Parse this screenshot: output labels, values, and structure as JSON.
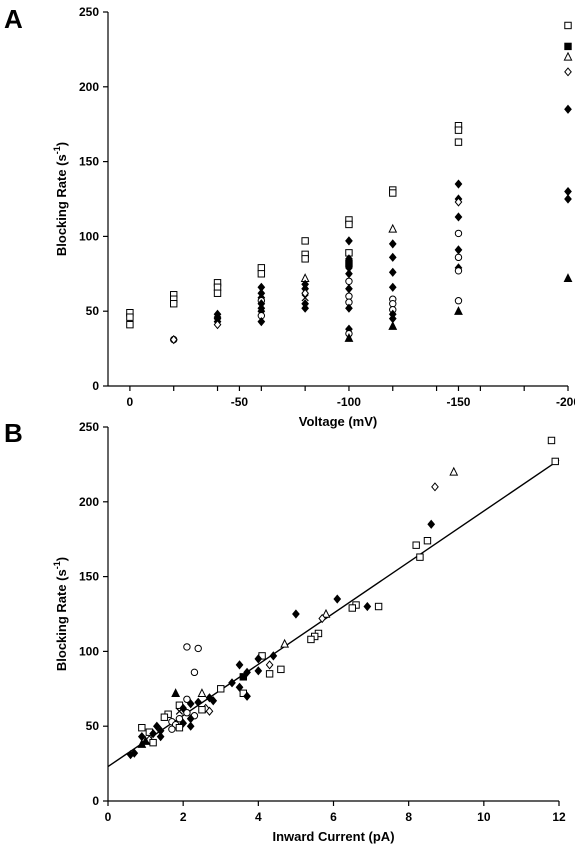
{
  "chart_data": [
    {
      "panel": "A",
      "type": "scatter",
      "xlabel": "Voltage (mV)",
      "ylabel": "Blocking Rate (s",
      "ylabel_sup": "-1",
      "ylabel_end": ")",
      "xlim": [
        10,
        -200
      ],
      "ylim": [
        0,
        250
      ],
      "x_ticks": [
        0,
        -50,
        -100,
        -150,
        -200
      ],
      "y_ticks": [
        0,
        50,
        100,
        150,
        200,
        250
      ],
      "x_minor_ticks": [
        -20,
        -40,
        -60,
        -80,
        -120,
        -140,
        -160,
        -180
      ],
      "points": [
        {
          "x": 0,
          "y": 49,
          "m": "square"
        },
        {
          "x": 0,
          "y": 46,
          "m": "square"
        },
        {
          "x": 0,
          "y": 41,
          "m": "square"
        },
        {
          "x": -20,
          "y": 61,
          "m": "square"
        },
        {
          "x": -20,
          "y": 58,
          "m": "square"
        },
        {
          "x": -20,
          "y": 55,
          "m": "square"
        },
        {
          "x": -20,
          "y": 31,
          "m": "circle"
        },
        {
          "x": -20,
          "y": 31,
          "m": "diamond"
        },
        {
          "x": -40,
          "y": 69,
          "m": "square"
        },
        {
          "x": -40,
          "y": 66,
          "m": "square"
        },
        {
          "x": -40,
          "y": 62,
          "m": "square"
        },
        {
          "x": -40,
          "y": 48,
          "m": "diamond_f"
        },
        {
          "x": -40,
          "y": 46,
          "m": "diamond_f"
        },
        {
          "x": -40,
          "y": 45,
          "m": "diamond_f"
        },
        {
          "x": -40,
          "y": 43,
          "m": "diamond_f"
        },
        {
          "x": -40,
          "y": 41,
          "m": "diamond"
        },
        {
          "x": -60,
          "y": 79,
          "m": "square"
        },
        {
          "x": -60,
          "y": 75,
          "m": "square"
        },
        {
          "x": -60,
          "y": 66,
          "m": "diamond_f"
        },
        {
          "x": -60,
          "y": 62,
          "m": "diamond_f"
        },
        {
          "x": -60,
          "y": 59,
          "m": "diamond_f"
        },
        {
          "x": -60,
          "y": 57,
          "m": "circle"
        },
        {
          "x": -60,
          "y": 55,
          "m": "diamond_f"
        },
        {
          "x": -60,
          "y": 52,
          "m": "diamond_f"
        },
        {
          "x": -60,
          "y": 50,
          "m": "diamond_f"
        },
        {
          "x": -60,
          "y": 47,
          "m": "circle"
        },
        {
          "x": -60,
          "y": 43,
          "m": "diamond_f"
        },
        {
          "x": -80,
          "y": 97,
          "m": "square"
        },
        {
          "x": -80,
          "y": 88,
          "m": "square"
        },
        {
          "x": -80,
          "y": 85,
          "m": "square"
        },
        {
          "x": -80,
          "y": 72,
          "m": "triangle"
        },
        {
          "x": -80,
          "y": 68,
          "m": "diamond_f"
        },
        {
          "x": -80,
          "y": 65,
          "m": "diamond_f"
        },
        {
          "x": -80,
          "y": 62,
          "m": "diamond"
        },
        {
          "x": -80,
          "y": 59,
          "m": "cross"
        },
        {
          "x": -80,
          "y": 55,
          "m": "diamond_f"
        },
        {
          "x": -80,
          "y": 52,
          "m": "diamond_f"
        },
        {
          "x": -100,
          "y": 111,
          "m": "square"
        },
        {
          "x": -100,
          "y": 108,
          "m": "square"
        },
        {
          "x": -100,
          "y": 97,
          "m": "diamond_f"
        },
        {
          "x": -100,
          "y": 89,
          "m": "square"
        },
        {
          "x": -100,
          "y": 85,
          "m": "diamond_f"
        },
        {
          "x": -100,
          "y": 82,
          "m": "square_f"
        },
        {
          "x": -100,
          "y": 79,
          "m": "diamond_f"
        },
        {
          "x": -100,
          "y": 75,
          "m": "diamond_f"
        },
        {
          "x": -100,
          "y": 70,
          "m": "circle"
        },
        {
          "x": -100,
          "y": 65,
          "m": "diamond_f"
        },
        {
          "x": -100,
          "y": 60,
          "m": "circle"
        },
        {
          "x": -100,
          "y": 56,
          "m": "circle"
        },
        {
          "x": -100,
          "y": 52,
          "m": "diamond_f"
        },
        {
          "x": -100,
          "y": 38,
          "m": "diamond_f"
        },
        {
          "x": -100,
          "y": 35,
          "m": "circle"
        },
        {
          "x": -100,
          "y": 32,
          "m": "triangle_f"
        },
        {
          "x": -120,
          "y": 131,
          "m": "square"
        },
        {
          "x": -120,
          "y": 129,
          "m": "square"
        },
        {
          "x": -120,
          "y": 105,
          "m": "triangle"
        },
        {
          "x": -120,
          "y": 95,
          "m": "diamond_f"
        },
        {
          "x": -120,
          "y": 86,
          "m": "diamond_f"
        },
        {
          "x": -120,
          "y": 76,
          "m": "diamond_f"
        },
        {
          "x": -120,
          "y": 66,
          "m": "diamond_f"
        },
        {
          "x": -120,
          "y": 58,
          "m": "circle"
        },
        {
          "x": -120,
          "y": 55,
          "m": "circle"
        },
        {
          "x": -120,
          "y": 51,
          "m": "circle"
        },
        {
          "x": -120,
          "y": 48,
          "m": "diamond_f"
        },
        {
          "x": -120,
          "y": 45,
          "m": "diamond_f"
        },
        {
          "x": -120,
          "y": 40,
          "m": "triangle_f"
        },
        {
          "x": -150,
          "y": 174,
          "m": "square"
        },
        {
          "x": -150,
          "y": 171,
          "m": "square"
        },
        {
          "x": -150,
          "y": 163,
          "m": "square"
        },
        {
          "x": -150,
          "y": 135,
          "m": "diamond_f"
        },
        {
          "x": -150,
          "y": 125,
          "m": "diamond_f"
        },
        {
          "x": -150,
          "y": 123,
          "m": "diamond"
        },
        {
          "x": -150,
          "y": 113,
          "m": "diamond_f"
        },
        {
          "x": -150,
          "y": 102,
          "m": "circle"
        },
        {
          "x": -150,
          "y": 91,
          "m": "diamond_f"
        },
        {
          "x": -150,
          "y": 86,
          "m": "circle"
        },
        {
          "x": -150,
          "y": 79,
          "m": "diamond_f"
        },
        {
          "x": -150,
          "y": 77,
          "m": "circle"
        },
        {
          "x": -150,
          "y": 57,
          "m": "circle"
        },
        {
          "x": -150,
          "y": 50,
          "m": "triangle_f"
        },
        {
          "x": -200,
          "y": 241,
          "m": "square"
        },
        {
          "x": -200,
          "y": 227,
          "m": "square_f"
        },
        {
          "x": -200,
          "y": 220,
          "m": "triangle"
        },
        {
          "x": -200,
          "y": 210,
          "m": "diamond"
        },
        {
          "x": -200,
          "y": 185,
          "m": "diamond_f"
        },
        {
          "x": -200,
          "y": 130,
          "m": "diamond_f"
        },
        {
          "x": -200,
          "y": 125,
          "m": "diamond_f"
        },
        {
          "x": -200,
          "y": 72,
          "m": "triangle_f"
        }
      ]
    },
    {
      "panel": "B",
      "type": "scatter",
      "xlabel": "Inward Current (pA)",
      "ylabel": "Blocking Rate (s",
      "ylabel_sup": "-1",
      "ylabel_end": ")",
      "xlim": [
        0,
        12
      ],
      "ylim": [
        0,
        250
      ],
      "x_ticks": [
        0,
        2,
        4,
        6,
        8,
        10,
        12
      ],
      "y_ticks": [
        0,
        50,
        100,
        150,
        200,
        250
      ],
      "fit_line": {
        "x": [
          0,
          12
        ],
        "y": [
          23,
          228
        ]
      },
      "points": [
        {
          "x": 11.8,
          "y": 241,
          "m": "square"
        },
        {
          "x": 11.9,
          "y": 227,
          "m": "square"
        },
        {
          "x": 9.2,
          "y": 220,
          "m": "triangle"
        },
        {
          "x": 8.7,
          "y": 210,
          "m": "diamond"
        },
        {
          "x": 8.6,
          "y": 185,
          "m": "diamond_f"
        },
        {
          "x": 8.2,
          "y": 171,
          "m": "square"
        },
        {
          "x": 8.5,
          "y": 174,
          "m": "square"
        },
        {
          "x": 8.3,
          "y": 163,
          "m": "square"
        },
        {
          "x": 6.1,
          "y": 135,
          "m": "diamond_f"
        },
        {
          "x": 6.9,
          "y": 130,
          "m": "diamond_f"
        },
        {
          "x": 7.2,
          "y": 130,
          "m": "square"
        },
        {
          "x": 6.6,
          "y": 131,
          "m": "square"
        },
        {
          "x": 6.5,
          "y": 129,
          "m": "square"
        },
        {
          "x": 5.0,
          "y": 125,
          "m": "diamond_f"
        },
        {
          "x": 5.8,
          "y": 125,
          "m": "triangle"
        },
        {
          "x": 5.7,
          "y": 122,
          "m": "diamond"
        },
        {
          "x": 5.6,
          "y": 112,
          "m": "square"
        },
        {
          "x": 5.5,
          "y": 110,
          "m": "square"
        },
        {
          "x": 5.4,
          "y": 108,
          "m": "square"
        },
        {
          "x": 4.7,
          "y": 105,
          "m": "triangle"
        },
        {
          "x": 2.1,
          "y": 103,
          "m": "circle"
        },
        {
          "x": 2.4,
          "y": 102,
          "m": "circle"
        },
        {
          "x": 4.1,
          "y": 97,
          "m": "square"
        },
        {
          "x": 4.0,
          "y": 95,
          "m": "diamond_f"
        },
        {
          "x": 4.4,
          "y": 97,
          "m": "diamond_f"
        },
        {
          "x": 4.3,
          "y": 91,
          "m": "diamond"
        },
        {
          "x": 3.5,
          "y": 91,
          "m": "diamond_f"
        },
        {
          "x": 4.6,
          "y": 88,
          "m": "square"
        },
        {
          "x": 4.0,
          "y": 87,
          "m": "diamond_f"
        },
        {
          "x": 3.7,
          "y": 86,
          "m": "diamond_f"
        },
        {
          "x": 2.3,
          "y": 86,
          "m": "circle"
        },
        {
          "x": 4.3,
          "y": 85,
          "m": "square"
        },
        {
          "x": 3.6,
          "y": 83,
          "m": "square_f"
        },
        {
          "x": 3.3,
          "y": 79,
          "m": "diamond_f"
        },
        {
          "x": 3.5,
          "y": 76,
          "m": "diamond_f"
        },
        {
          "x": 3.0,
          "y": 75,
          "m": "square"
        },
        {
          "x": 2.5,
          "y": 72,
          "m": "triangle"
        },
        {
          "x": 3.6,
          "y": 72,
          "m": "square"
        },
        {
          "x": 3.7,
          "y": 70,
          "m": "diamond_f"
        },
        {
          "x": 1.8,
          "y": 72,
          "m": "triangle_f"
        },
        {
          "x": 2.7,
          "y": 69,
          "m": "diamond_f"
        },
        {
          "x": 2.1,
          "y": 68,
          "m": "circle"
        },
        {
          "x": 2.8,
          "y": 67,
          "m": "diamond_f"
        },
        {
          "x": 2.4,
          "y": 66,
          "m": "diamond_f"
        },
        {
          "x": 2.2,
          "y": 65,
          "m": "diamond_f"
        },
        {
          "x": 1.9,
          "y": 64,
          "m": "square"
        },
        {
          "x": 2.6,
          "y": 62,
          "m": "diamond"
        },
        {
          "x": 2.0,
          "y": 62,
          "m": "diamond_f"
        },
        {
          "x": 2.5,
          "y": 61,
          "m": "square"
        },
        {
          "x": 2.7,
          "y": 60,
          "m": "diamond"
        },
        {
          "x": 1.9,
          "y": 60,
          "m": "cross"
        },
        {
          "x": 2.1,
          "y": 59,
          "m": "circle"
        },
        {
          "x": 1.6,
          "y": 58,
          "m": "square"
        },
        {
          "x": 2.3,
          "y": 57,
          "m": "circle"
        },
        {
          "x": 1.5,
          "y": 56,
          "m": "square"
        },
        {
          "x": 2.2,
          "y": 55,
          "m": "diamond_f"
        },
        {
          "x": 1.9,
          "y": 55,
          "m": "circle"
        },
        {
          "x": 1.7,
          "y": 53,
          "m": "circle"
        },
        {
          "x": 2.0,
          "y": 52,
          "m": "diamond_f"
        },
        {
          "x": 1.8,
          "y": 51,
          "m": "circle"
        },
        {
          "x": 2.2,
          "y": 50,
          "m": "diamond_f"
        },
        {
          "x": 1.3,
          "y": 50,
          "m": "diamond_f"
        },
        {
          "x": 1.9,
          "y": 49,
          "m": "square"
        },
        {
          "x": 0.9,
          "y": 49,
          "m": "square"
        },
        {
          "x": 1.7,
          "y": 48,
          "m": "circle"
        },
        {
          "x": 1.4,
          "y": 47,
          "m": "diamond_f"
        },
        {
          "x": 1.1,
          "y": 46,
          "m": "square"
        },
        {
          "x": 1.2,
          "y": 45,
          "m": "diamond_f"
        },
        {
          "x": 1.4,
          "y": 43,
          "m": "diamond_f"
        },
        {
          "x": 0.9,
          "y": 43,
          "m": "diamond_f"
        },
        {
          "x": 1.1,
          "y": 41,
          "m": "diamond"
        },
        {
          "x": 1.0,
          "y": 40,
          "m": "triangle_f"
        },
        {
          "x": 0.9,
          "y": 38,
          "m": "triangle_f"
        },
        {
          "x": 1.2,
          "y": 39,
          "m": "square"
        },
        {
          "x": 0.6,
          "y": 31,
          "m": "diamond_f"
        },
        {
          "x": 0.7,
          "y": 32,
          "m": "diamond_f"
        }
      ]
    }
  ]
}
